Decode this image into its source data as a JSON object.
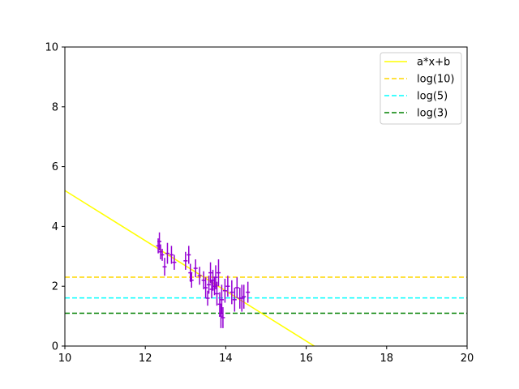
{
  "chart_data": {
    "type": "scatter",
    "title": "",
    "xlabel": "",
    "ylabel": "",
    "xlim": [
      10,
      20
    ],
    "ylim": [
      0,
      10
    ],
    "xticks": [
      "10",
      "12",
      "14",
      "16",
      "18",
      "20"
    ],
    "yticks": [
      "0",
      "2",
      "4",
      "6",
      "8",
      "10"
    ],
    "grid": false,
    "legend_placement": "top-right",
    "fit_line": {
      "name": "a*x+b",
      "color": "#ffff00",
      "x": [
        10,
        16.2
      ],
      "y": [
        5.2,
        0
      ]
    },
    "hlines": [
      {
        "name": "log(10)",
        "value": 2.3026,
        "color": "#ffd700",
        "style": "dashed"
      },
      {
        "name": "log(5)",
        "value": 1.6094,
        "color": "#00ffff",
        "style": "dashed"
      },
      {
        "name": "log(3)",
        "value": 1.0986,
        "color": "#008000",
        "style": "dashed"
      }
    ],
    "scatter_color": "#9400d3",
    "points": [
      {
        "x": 12.32,
        "y": 3.35,
        "xerr": 0.05,
        "yerr": 0.25
      },
      {
        "x": 12.35,
        "y": 3.5,
        "xerr": 0.05,
        "yerr": 0.3
      },
      {
        "x": 12.38,
        "y": 3.15,
        "xerr": 0.05,
        "yerr": 0.25
      },
      {
        "x": 12.42,
        "y": 3.05,
        "xerr": 0.05,
        "yerr": 0.2
      },
      {
        "x": 12.48,
        "y": 2.65,
        "xerr": 0.05,
        "yerr": 0.3
      },
      {
        "x": 12.55,
        "y": 3.1,
        "xerr": 0.05,
        "yerr": 0.35
      },
      {
        "x": 12.65,
        "y": 3.05,
        "xerr": 0.05,
        "yerr": 0.3
      },
      {
        "x": 12.72,
        "y": 2.8,
        "xerr": 0.05,
        "yerr": 0.25
      },
      {
        "x": 13.0,
        "y": 2.85,
        "xerr": 0.05,
        "yerr": 0.3
      },
      {
        "x": 13.08,
        "y": 3.05,
        "xerr": 0.05,
        "yerr": 0.3
      },
      {
        "x": 13.12,
        "y": 2.45,
        "xerr": 0.05,
        "yerr": 0.3
      },
      {
        "x": 13.15,
        "y": 2.2,
        "xerr": 0.05,
        "yerr": 0.25
      },
      {
        "x": 13.25,
        "y": 2.6,
        "xerr": 0.05,
        "yerr": 0.3
      },
      {
        "x": 13.35,
        "y": 2.35,
        "xerr": 0.05,
        "yerr": 0.3
      },
      {
        "x": 13.45,
        "y": 2.2,
        "xerr": 0.05,
        "yerr": 0.3
      },
      {
        "x": 13.5,
        "y": 1.95,
        "xerr": 0.05,
        "yerr": 0.35
      },
      {
        "x": 13.55,
        "y": 1.6,
        "xerr": 0.05,
        "yerr": 0.25
      },
      {
        "x": 13.58,
        "y": 2.05,
        "xerr": 0.05,
        "yerr": 0.3
      },
      {
        "x": 13.62,
        "y": 2.45,
        "xerr": 0.05,
        "yerr": 0.35
      },
      {
        "x": 13.65,
        "y": 1.9,
        "xerr": 0.05,
        "yerr": 0.3
      },
      {
        "x": 13.68,
        "y": 2.2,
        "xerr": 0.05,
        "yerr": 0.35
      },
      {
        "x": 13.72,
        "y": 2.0,
        "xerr": 0.05,
        "yerr": 0.3
      },
      {
        "x": 13.75,
        "y": 2.3,
        "xerr": 0.05,
        "yerr": 0.4
      },
      {
        "x": 13.78,
        "y": 1.75,
        "xerr": 0.05,
        "yerr": 0.4
      },
      {
        "x": 13.82,
        "y": 2.45,
        "xerr": 0.05,
        "yerr": 0.45
      },
      {
        "x": 13.85,
        "y": 1.4,
        "xerr": 0.05,
        "yerr": 0.4
      },
      {
        "x": 13.88,
        "y": 1.0,
        "xerr": 0.05,
        "yerr": 0.4
      },
      {
        "x": 13.9,
        "y": 1.55,
        "xerr": 0.05,
        "yerr": 0.5
      },
      {
        "x": 13.93,
        "y": 0.95,
        "xerr": 0.05,
        "yerr": 0.35
      },
      {
        "x": 13.98,
        "y": 1.85,
        "xerr": 0.05,
        "yerr": 0.4
      },
      {
        "x": 14.05,
        "y": 2.0,
        "xerr": 0.05,
        "yerr": 0.35
      },
      {
        "x": 14.15,
        "y": 1.8,
        "xerr": 0.05,
        "yerr": 0.4
      },
      {
        "x": 14.22,
        "y": 1.55,
        "xerr": 0.05,
        "yerr": 0.4
      },
      {
        "x": 14.28,
        "y": 1.95,
        "xerr": 0.05,
        "yerr": 0.35
      },
      {
        "x": 14.35,
        "y": 1.6,
        "xerr": 0.05,
        "yerr": 0.35
      },
      {
        "x": 14.4,
        "y": 1.6,
        "xerr": 0.05,
        "yerr": 0.45
      },
      {
        "x": 14.45,
        "y": 1.65,
        "xerr": 0.05,
        "yerr": 0.4
      },
      {
        "x": 14.55,
        "y": 1.8,
        "xerr": 0.05,
        "yerr": 0.35
      }
    ]
  }
}
